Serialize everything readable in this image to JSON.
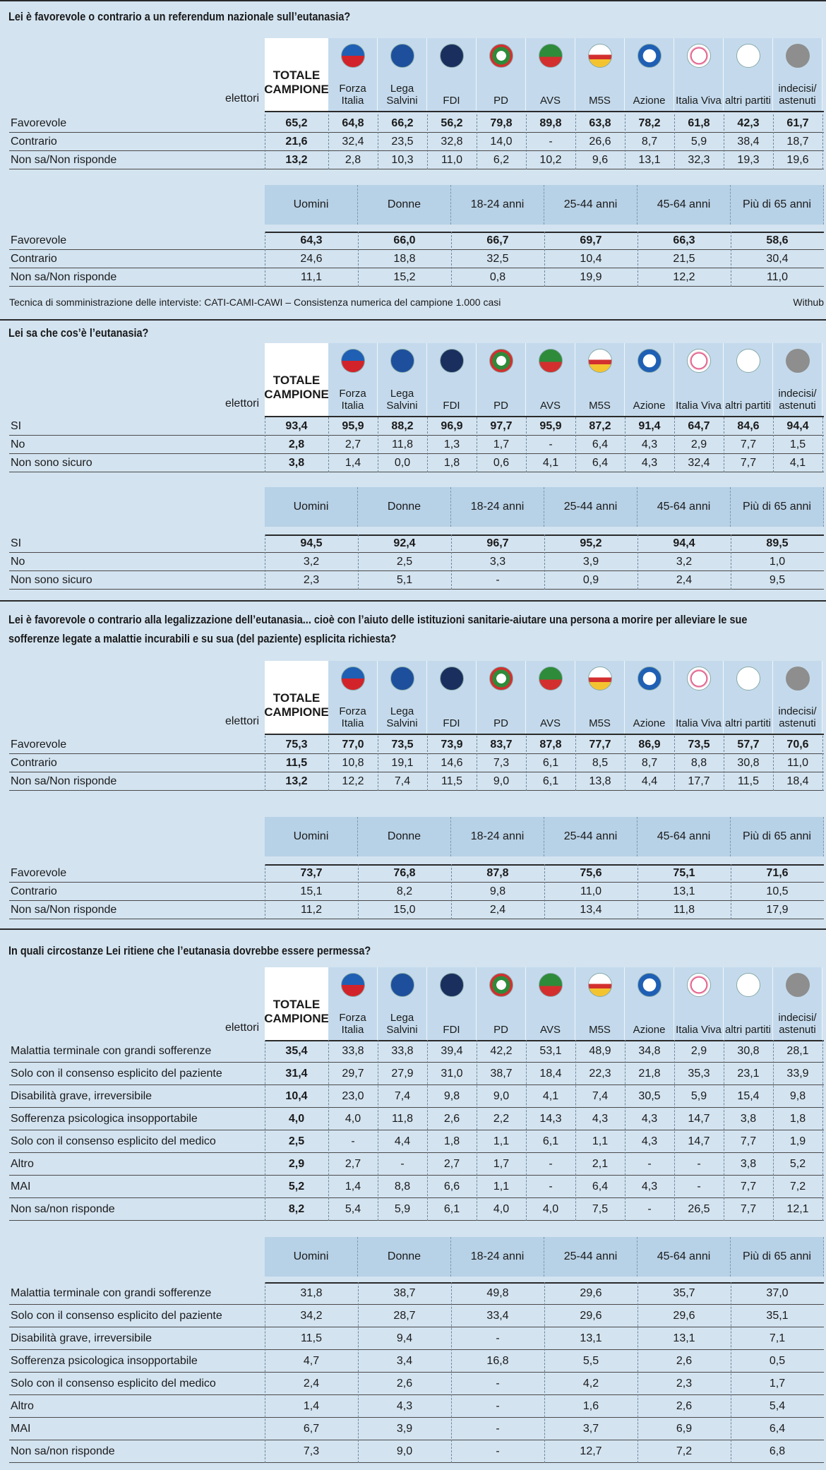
{
  "party_columns": {
    "corner": "elettori",
    "total": "TOTALE CAMPIONE",
    "parties": [
      "Forza Italia",
      "Lega Salvini",
      "FDI",
      "PD",
      "AVS",
      "M5S",
      "Azione",
      "Italia Viva",
      "altri partiti",
      "indecisi/ astenuti"
    ]
  },
  "demographic_columns": [
    "Uomini",
    "Donne",
    "18-24 anni",
    "25-44 anni",
    "45-64 anni",
    "Più di 65 anni"
  ],
  "sections": [
    {
      "title": "Lei è favorevole o contrario a un referendum nazionale sull’eutanasia?",
      "rows": [
        {
          "label": "Favorevole",
          "total": "65,2",
          "parties": [
            "64,8",
            "66,2",
            "56,2",
            "79,8",
            "89,8",
            "63,8",
            "78,2",
            "61,8",
            "42,3",
            "61,7"
          ],
          "demographics": [
            "64,3",
            "66,0",
            "66,7",
            "69,7",
            "66,3",
            "58,6"
          ]
        },
        {
          "label": "Contrario",
          "total": "21,6",
          "parties": [
            "32,4",
            "23,5",
            "32,8",
            "14,0",
            "-",
            "26,6",
            "8,7",
            "5,9",
            "38,4",
            "18,7"
          ],
          "demographics": [
            "24,6",
            "18,8",
            "32,5",
            "10,4",
            "21,5",
            "30,4"
          ]
        },
        {
          "label": "Non sa/Non risponde",
          "total": "13,2",
          "parties": [
            "2,8",
            "10,3",
            "11,0",
            "6,2",
            "10,2",
            "9,6",
            "13,1",
            "32,3",
            "19,3",
            "19,6"
          ],
          "demographics": [
            "11,1",
            "15,2",
            "0,8",
            "19,9",
            "12,2",
            "11,0"
          ]
        }
      ],
      "footnote": "Tecnica di somministrazione delle interviste: CATI-CAMI-CAWI – Consistenza numerica del campione 1.000 casi",
      "source": "Withub"
    },
    {
      "title": "Lei sa che cos’è l’eutanasia?",
      "rows": [
        {
          "label": "SI",
          "total": "93,4",
          "parties": [
            "95,9",
            "88,2",
            "96,9",
            "97,7",
            "95,9",
            "87,2",
            "91,4",
            "64,7",
            "84,6",
            "94,4"
          ],
          "demographics": [
            "94,5",
            "92,4",
            "96,7",
            "95,2",
            "94,4",
            "89,5"
          ]
        },
        {
          "label": "No",
          "total": "2,8",
          "parties": [
            "2,7",
            "11,8",
            "1,3",
            "1,7",
            "-",
            "6,4",
            "4,3",
            "2,9",
            "7,7",
            "1,5"
          ],
          "demographics": [
            "3,2",
            "2,5",
            "3,3",
            "3,9",
            "3,2",
            "1,0"
          ]
        },
        {
          "label": "Non sono sicuro",
          "total": "3,8",
          "parties": [
            "1,4",
            "0,0",
            "1,8",
            "0,6",
            "4,1",
            "6,4",
            "4,3",
            "32,4",
            "7,7",
            "4,1"
          ],
          "demographics": [
            "2,3",
            "5,1",
            "-",
            "0,9",
            "2,4",
            "9,5"
          ]
        }
      ]
    },
    {
      "title": "Lei è favorevole o contrario alla legalizzazione dell’eutanasia... cioè con l’aiuto delle istituzioni sanitarie-aiutare una persona a morire per alleviare le sue sofferenze legate a malattie incurabili e su sua (del paziente)  esplicita richiesta?",
      "rows": [
        {
          "label": "Favorevole",
          "total": "75,3",
          "parties": [
            "77,0",
            "73,5",
            "73,9",
            "83,7",
            "87,8",
            "77,7",
            "86,9",
            "73,5",
            "57,7",
            "70,6"
          ],
          "demographics": [
            "73,7",
            "76,8",
            "87,8",
            "75,6",
            "75,1",
            "71,6"
          ]
        },
        {
          "label": "Contrario",
          "total": "11,5",
          "parties": [
            "10,8",
            "19,1",
            "14,6",
            "7,3",
            "6,1",
            "8,5",
            "8,7",
            "8,8",
            "30,8",
            "11,0"
          ],
          "demographics": [
            "15,1",
            "8,2",
            "9,8",
            "11,0",
            "13,1",
            "10,5"
          ]
        },
        {
          "label": "Non sa/Non risponde",
          "total": "13,2",
          "parties": [
            "12,2",
            "7,4",
            "11,5",
            "9,0",
            "6,1",
            "13,8",
            "4,4",
            "17,7",
            "11,5",
            "18,4"
          ],
          "demographics": [
            "11,2",
            "15,0",
            "2,4",
            "13,4",
            "11,8",
            "17,9"
          ]
        }
      ]
    },
    {
      "title": "In quali circostanze Lei ritiene che l’eutanasia dovrebbe essere permessa?",
      "rows": [
        {
          "label": "Malattia terminale con grandi sofferenze",
          "total": "35,4",
          "parties": [
            "33,8",
            "33,8",
            "39,4",
            "42,2",
            "53,1",
            "48,9",
            "34,8",
            "2,9",
            "30,8",
            "28,1"
          ],
          "demographics": [
            "31,8",
            "38,7",
            "49,8",
            "29,6",
            "35,7",
            "37,0"
          ]
        },
        {
          "label": "Solo con il consenso esplicito del paziente",
          "total": "31,4",
          "parties": [
            "29,7",
            "27,9",
            "31,0",
            "38,7",
            "18,4",
            "22,3",
            "21,8",
            "35,3",
            "23,1",
            "33,9"
          ],
          "demographics": [
            "34,2",
            "28,7",
            "33,4",
            "29,6",
            "29,6",
            "35,1"
          ]
        },
        {
          "label": "Disabilità grave, irreversibile",
          "total": "10,4",
          "parties": [
            "23,0",
            "7,4",
            "9,8",
            "9,0",
            "4,1",
            "7,4",
            "30,5",
            "5,9",
            "15,4",
            "9,8"
          ],
          "demographics": [
            "11,5",
            "9,4",
            "-",
            "13,1",
            "13,1",
            "7,1"
          ]
        },
        {
          "label": "Sofferenza psicologica insopportabile",
          "total": "4,0",
          "parties": [
            "4,0",
            "11,8",
            "2,6",
            "2,2",
            "14,3",
            "4,3",
            "4,3",
            "14,7",
            "3,8",
            "1,8"
          ],
          "demographics": [
            "4,7",
            "3,4",
            "16,8",
            "5,5",
            "2,6",
            "0,5"
          ]
        },
        {
          "label": "Solo con il consenso esplicito del medico",
          "total": "2,5",
          "parties": [
            "-",
            "4,4",
            "1,8",
            "1,1",
            "6,1",
            "1,1",
            "4,3",
            "14,7",
            "7,7",
            "1,9"
          ],
          "demographics": [
            "2,4",
            "2,6",
            "-",
            "4,2",
            "2,3",
            "1,7"
          ]
        },
        {
          "label": "Altro",
          "total": "2,9",
          "parties": [
            "2,7",
            "-",
            "2,7",
            "1,7",
            "-",
            "2,1",
            "-",
            "-",
            "3,8",
            "5,2"
          ],
          "demographics": [
            "1,4",
            "4,3",
            "-",
            "1,6",
            "2,6",
            "5,4"
          ]
        },
        {
          "label": "MAI",
          "total": "5,2",
          "parties": [
            "1,4",
            "8,8",
            "6,6",
            "1,1",
            "-",
            "6,4",
            "4,3",
            "-",
            "7,7",
            "7,2"
          ],
          "demographics": [
            "6,7",
            "3,9",
            "-",
            "3,7",
            "6,9",
            "6,4"
          ]
        },
        {
          "label": "Non sa/non risponde",
          "total": "8,2",
          "parties": [
            "5,4",
            "5,9",
            "6,1",
            "4,0",
            "4,0",
            "7,5",
            "-",
            "26,5",
            "7,7",
            "12,1"
          ],
          "demographics": [
            "7,3",
            "9,0",
            "-",
            "12,7",
            "7,2",
            "6,8"
          ]
        }
      ]
    }
  ]
}
